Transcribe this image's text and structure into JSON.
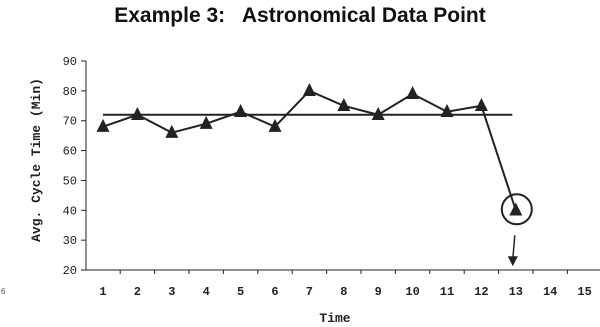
{
  "chart_data": {
    "type": "line",
    "title": "Example 3:   Astronomical Data Point",
    "xlabel": "Time",
    "ylabel": "Avg. Cycle Time (Min)",
    "x": [
      1,
      2,
      3,
      4,
      5,
      6,
      7,
      8,
      9,
      10,
      11,
      12,
      13
    ],
    "x_ticks": [
      "1",
      "2",
      "3",
      "4",
      "5",
      "6",
      "7",
      "8",
      "9",
      "10",
      "11",
      "12",
      "13",
      "14",
      "15"
    ],
    "y_ticks": [
      "20",
      "30",
      "40",
      "50",
      "60",
      "70",
      "80",
      "90"
    ],
    "series": [
      {
        "values": [
          68,
          72,
          66,
          69,
          73,
          68,
          80,
          75,
          72,
          79,
          73,
          75,
          40
        ],
        "marker": "triangle",
        "color": "#222222"
      }
    ],
    "reference_line": {
      "value": 72,
      "x_start": 1,
      "x_end": 12.9
    },
    "highlight": {
      "x": 13,
      "y": 40,
      "shape": "circle",
      "arrow": "down"
    },
    "side_note": "6",
    "xlim": [
      0.5,
      15.5
    ],
    "ylim": [
      20,
      90
    ],
    "grid": false
  }
}
